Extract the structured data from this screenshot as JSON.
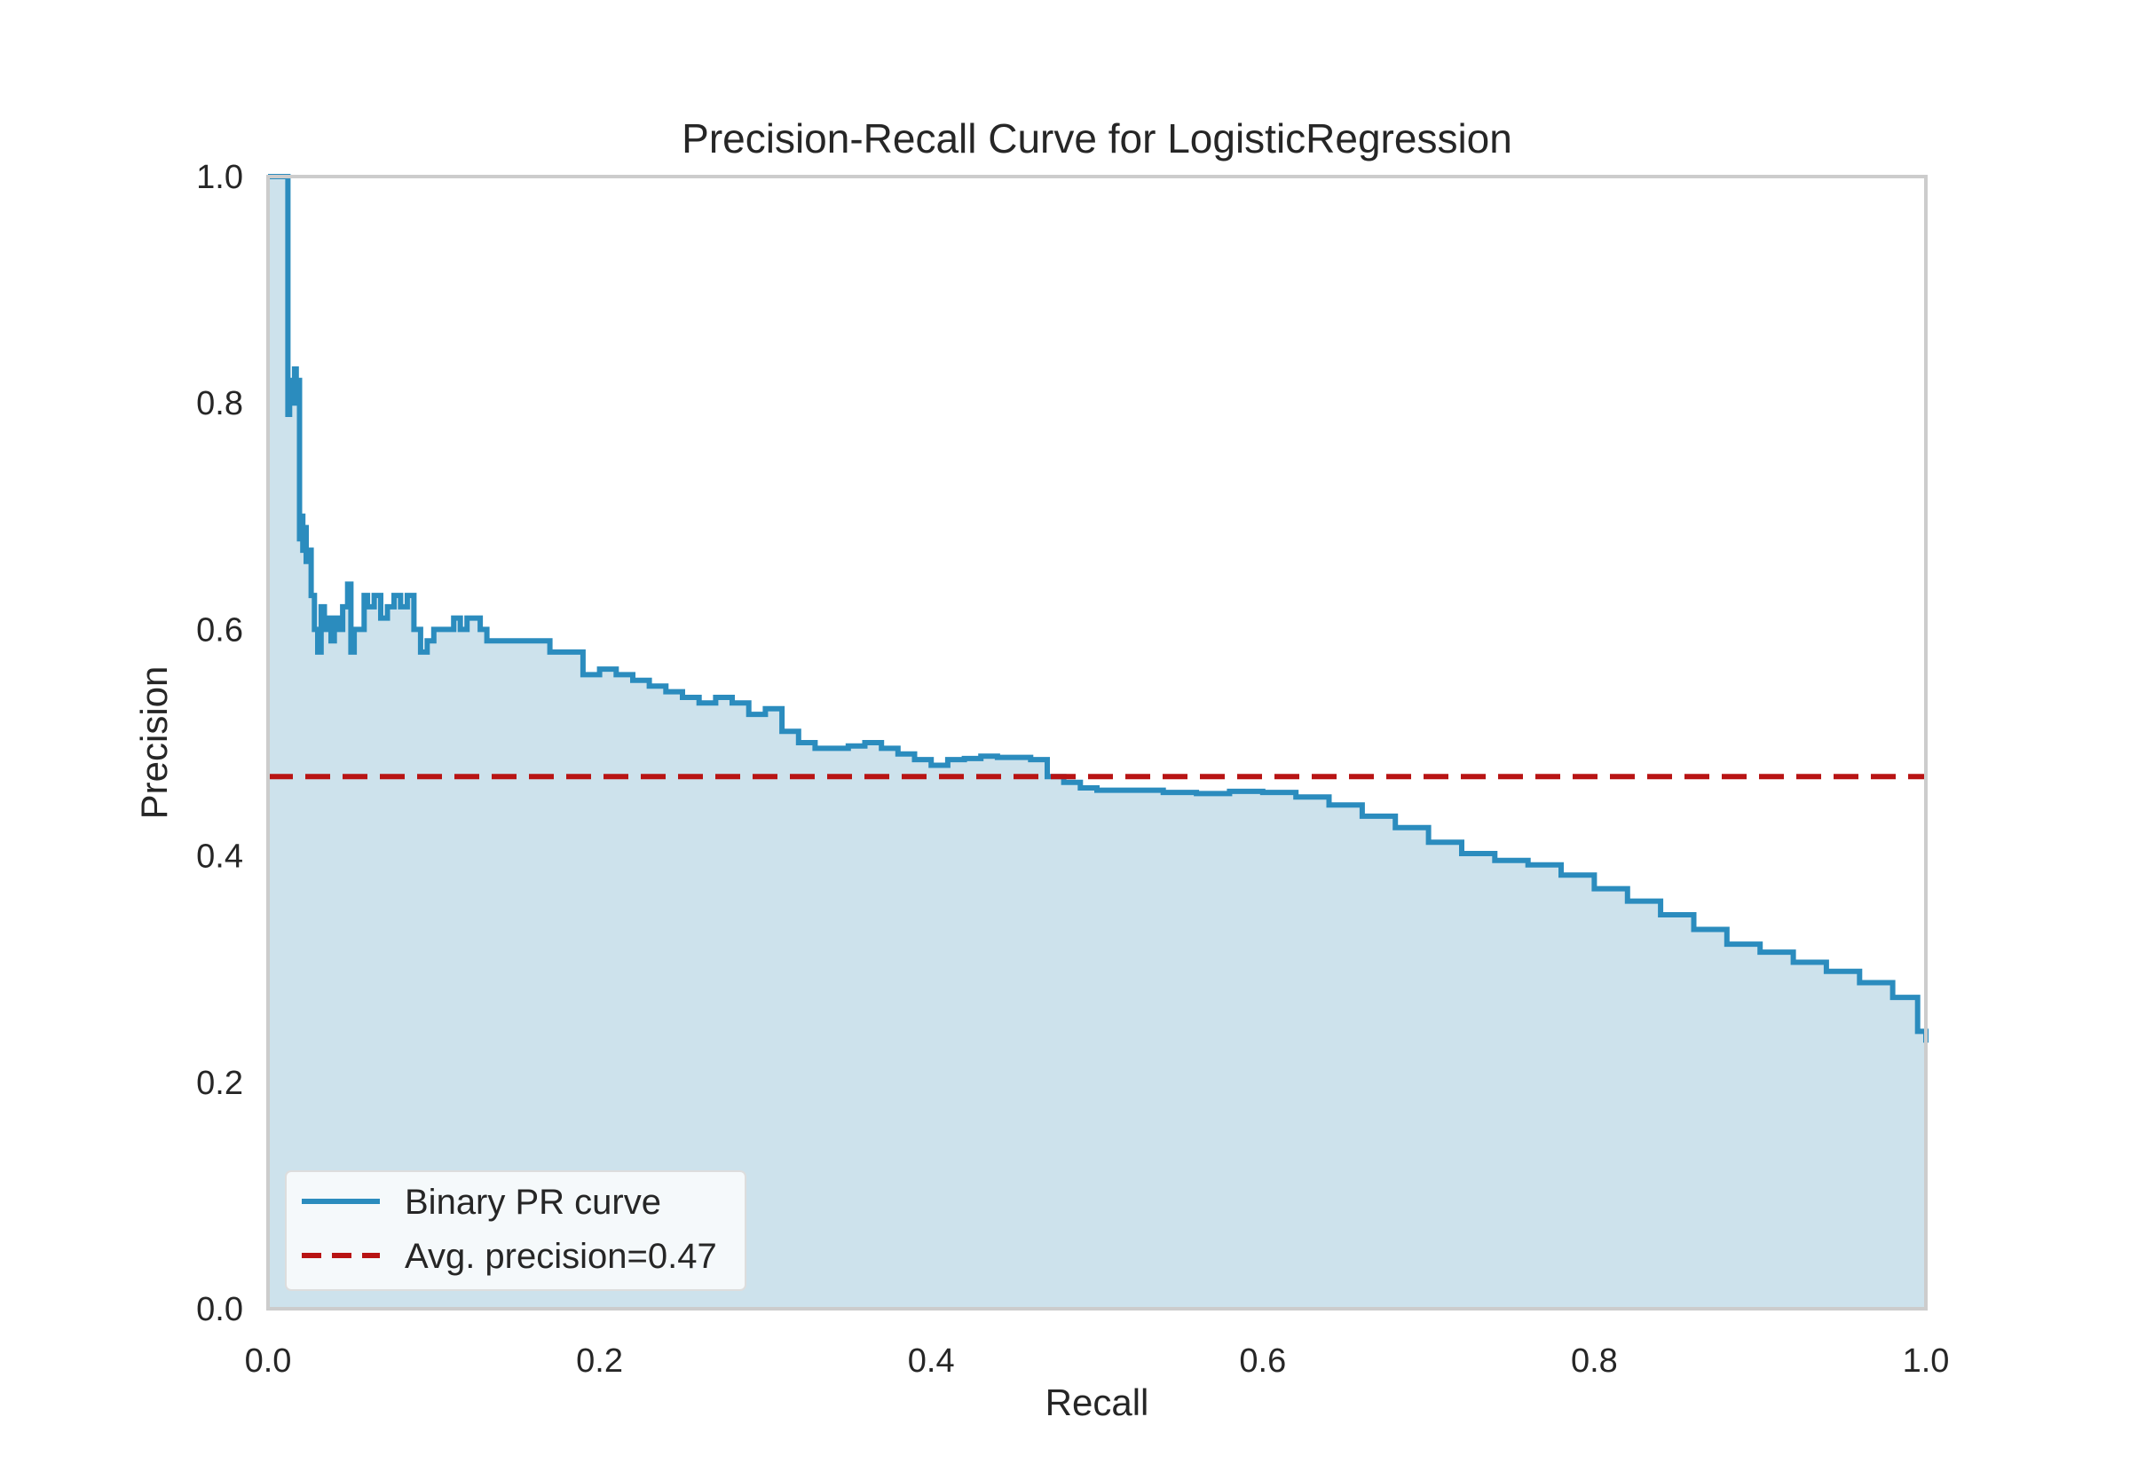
{
  "chart_data": {
    "type": "area",
    "title": "Precision-Recall Curve for LogisticRegression",
    "xlabel": "Recall",
    "ylabel": "Precision",
    "xlim": [
      0.0,
      1.0
    ],
    "ylim": [
      0.0,
      1.0
    ],
    "xticks": [
      "0.0",
      "0.2",
      "0.4",
      "0.6",
      "0.8",
      "1.0"
    ],
    "yticks": [
      "0.0",
      "0.2",
      "0.4",
      "0.6",
      "0.8",
      "1.0"
    ],
    "grid": false,
    "legend_position": "lower-left",
    "series": [
      {
        "name": "Binary PR curve",
        "kind": "step-line-with-fill",
        "color": "#2b8cbe",
        "fill_color": "#cde2ec",
        "x": [
          0.0,
          0.012,
          0.012,
          0.013,
          0.014,
          0.016,
          0.017,
          0.018,
          0.019,
          0.02,
          0.021,
          0.022,
          0.023,
          0.024,
          0.026,
          0.028,
          0.03,
          0.032,
          0.034,
          0.036,
          0.038,
          0.04,
          0.042,
          0.045,
          0.048,
          0.05,
          0.052,
          0.055,
          0.058,
          0.06,
          0.064,
          0.068,
          0.072,
          0.076,
          0.08,
          0.084,
          0.088,
          0.092,
          0.096,
          0.1,
          0.104,
          0.108,
          0.112,
          0.116,
          0.12,
          0.124,
          0.128,
          0.132,
          0.136,
          0.14,
          0.145,
          0.15,
          0.155,
          0.16,
          0.165,
          0.17,
          0.175,
          0.18,
          0.19,
          0.2,
          0.21,
          0.22,
          0.23,
          0.24,
          0.25,
          0.26,
          0.27,
          0.28,
          0.29,
          0.3,
          0.31,
          0.32,
          0.33,
          0.34,
          0.35,
          0.36,
          0.37,
          0.38,
          0.39,
          0.4,
          0.41,
          0.42,
          0.43,
          0.44,
          0.45,
          0.46,
          0.47,
          0.48,
          0.49,
          0.5,
          0.52,
          0.54,
          0.56,
          0.58,
          0.6,
          0.62,
          0.64,
          0.66,
          0.68,
          0.7,
          0.72,
          0.74,
          0.76,
          0.78,
          0.8,
          0.82,
          0.84,
          0.86,
          0.88,
          0.9,
          0.92,
          0.94,
          0.96,
          0.98,
          0.995,
          1.0
        ],
        "y": [
          1.0,
          1.0,
          0.79,
          0.82,
          0.8,
          0.83,
          0.8,
          0.82,
          0.68,
          0.7,
          0.67,
          0.69,
          0.66,
          0.67,
          0.63,
          0.6,
          0.58,
          0.62,
          0.6,
          0.61,
          0.59,
          0.61,
          0.6,
          0.62,
          0.64,
          0.58,
          0.6,
          0.6,
          0.63,
          0.62,
          0.63,
          0.61,
          0.62,
          0.63,
          0.62,
          0.63,
          0.6,
          0.58,
          0.59,
          0.6,
          0.6,
          0.6,
          0.61,
          0.6,
          0.61,
          0.61,
          0.6,
          0.59,
          0.59,
          0.59,
          0.59,
          0.59,
          0.59,
          0.59,
          0.59,
          0.58,
          0.58,
          0.58,
          0.56,
          0.565,
          0.56,
          0.555,
          0.55,
          0.545,
          0.54,
          0.535,
          0.54,
          0.535,
          0.525,
          0.53,
          0.51,
          0.5,
          0.495,
          0.495,
          0.497,
          0.5,
          0.495,
          0.49,
          0.485,
          0.48,
          0.485,
          0.486,
          0.488,
          0.487,
          0.487,
          0.485,
          0.47,
          0.465,
          0.46,
          0.458,
          0.458,
          0.456,
          0.455,
          0.457,
          0.456,
          0.452,
          0.445,
          0.435,
          0.425,
          0.412,
          0.402,
          0.396,
          0.392,
          0.383,
          0.371,
          0.36,
          0.348,
          0.335,
          0.322,
          0.315,
          0.306,
          0.298,
          0.288,
          0.275,
          0.245,
          0.235
        ]
      },
      {
        "name": "Avg. precision=0.47",
        "kind": "hline",
        "color": "#b81414",
        "y": 0.47
      }
    ]
  }
}
